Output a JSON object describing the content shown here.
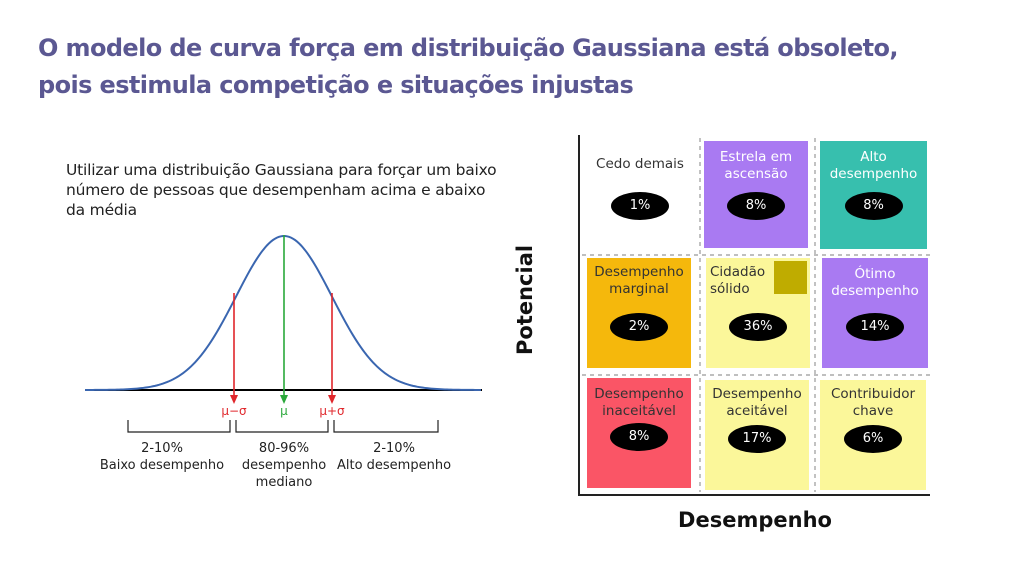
{
  "title": {
    "line1": "O modelo de curva força em distribuição Gaussiana está obsoleto,",
    "line2": "pois estimula competição e situações injustas"
  },
  "intro": "Utilizar uma distribuição Gaussiana para forçar um baixo número de pessoas que desempenham acima e abaixo da média",
  "gaussian": {
    "markers": [
      {
        "label": "μ−σ",
        "color": "#e0262b"
      },
      {
        "label": "μ",
        "color": "#2aa83a"
      },
      {
        "label": "μ+σ",
        "color": "#e0262b"
      }
    ],
    "curve_color": "#3a66b0",
    "ranges": [
      {
        "pct": "2-10%",
        "desc": "Baixo desempenho"
      },
      {
        "pct": "80-96%",
        "desc": "desempenho mediano"
      },
      {
        "pct": "2-10%",
        "desc": "Alto desempenho"
      }
    ]
  },
  "matrix": {
    "y_axis": "Potencial",
    "x_axis": "Desempenho",
    "cells": [
      {
        "label": "Cedo demais",
        "pct": "1%",
        "color": "#ffffff"
      },
      {
        "label": "Estrela em ascensão",
        "pct": "8%",
        "color": "#a97af2"
      },
      {
        "label": "Alto desempenho",
        "pct": "8%",
        "color": "#37bfae"
      },
      {
        "label": "Desempenho marginal",
        "pct": "2%",
        "color": "#f5b80c"
      },
      {
        "label": "Cidadão sólido",
        "pct": "36%",
        "color": "#fbf79a"
      },
      {
        "label": "Ótimo desempenho",
        "pct": "14%",
        "color": "#a97af2"
      },
      {
        "label": "Desempenho inaceitável",
        "pct": "8%",
        "color": "#fa5566"
      },
      {
        "label": "Desempenho aceitável",
        "pct": "17%",
        "color": "#fbf79a"
      },
      {
        "label": "Contribuidor chave",
        "pct": "6%",
        "color": "#fbf79a"
      }
    ]
  }
}
